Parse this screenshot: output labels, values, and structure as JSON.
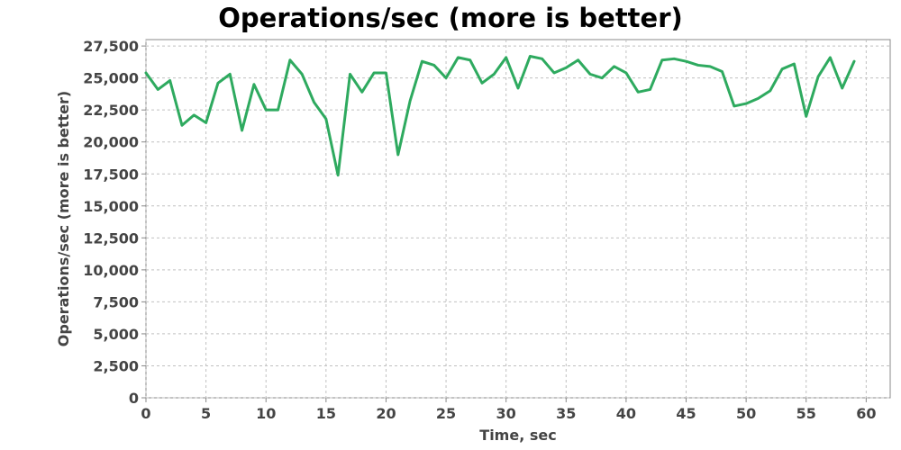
{
  "chart_data": {
    "type": "line",
    "title": "Operations/sec (more is better)",
    "xlabel": "Time, sec",
    "ylabel": "Operations/sec (more is better)",
    "xlim": [
      0,
      62
    ],
    "ylim": [
      0,
      28000
    ],
    "x_ticks": [
      0,
      5,
      10,
      15,
      20,
      25,
      30,
      35,
      40,
      45,
      50,
      55,
      60
    ],
    "y_ticks": [
      0,
      2500,
      5000,
      7500,
      10000,
      12500,
      15000,
      17500,
      20000,
      22500,
      25000,
      27500
    ],
    "x_tick_labels": [
      "0",
      "5",
      "10",
      "15",
      "20",
      "25",
      "30",
      "35",
      "40",
      "45",
      "50",
      "55",
      "60"
    ],
    "y_tick_labels": [
      "0",
      "2,500",
      "5,000",
      "7,500",
      "10,000",
      "12,500",
      "15,000",
      "17,500",
      "20,000",
      "22,500",
      "25,000",
      "27,500"
    ],
    "grid": true,
    "series": [
      {
        "color": "#2eaa5f",
        "x": [
          0,
          1,
          2,
          3,
          4,
          5,
          6,
          7,
          8,
          9,
          10,
          11,
          12,
          13,
          14,
          15,
          16,
          17,
          18,
          19,
          20,
          21,
          22,
          23,
          24,
          25,
          26,
          27,
          28,
          29,
          30,
          31,
          32,
          33,
          34,
          35,
          36,
          37,
          38,
          39,
          40,
          41,
          42,
          43,
          44,
          45,
          46,
          47,
          48,
          49,
          50,
          51,
          52,
          53,
          54,
          55,
          56,
          57,
          58,
          59
        ],
        "y": [
          25400,
          24100,
          24800,
          21300,
          22100,
          21500,
          24600,
          25300,
          20900,
          24500,
          22500,
          22500,
          26400,
          25300,
          23100,
          21800,
          17400,
          25300,
          23900,
          25400,
          25400,
          19000,
          23200,
          26300,
          26000,
          25000,
          26600,
          26400,
          24600,
          25300,
          26600,
          24200,
          26700,
          26500,
          25400,
          25800,
          26400,
          25300,
          25000,
          25900,
          25400,
          23900,
          24100,
          26400,
          26500,
          26300,
          26000,
          25900,
          25500,
          22800,
          23000,
          23400,
          24000,
          25700,
          26100,
          22000,
          25100,
          26600,
          24200,
          26300
        ]
      }
    ]
  }
}
